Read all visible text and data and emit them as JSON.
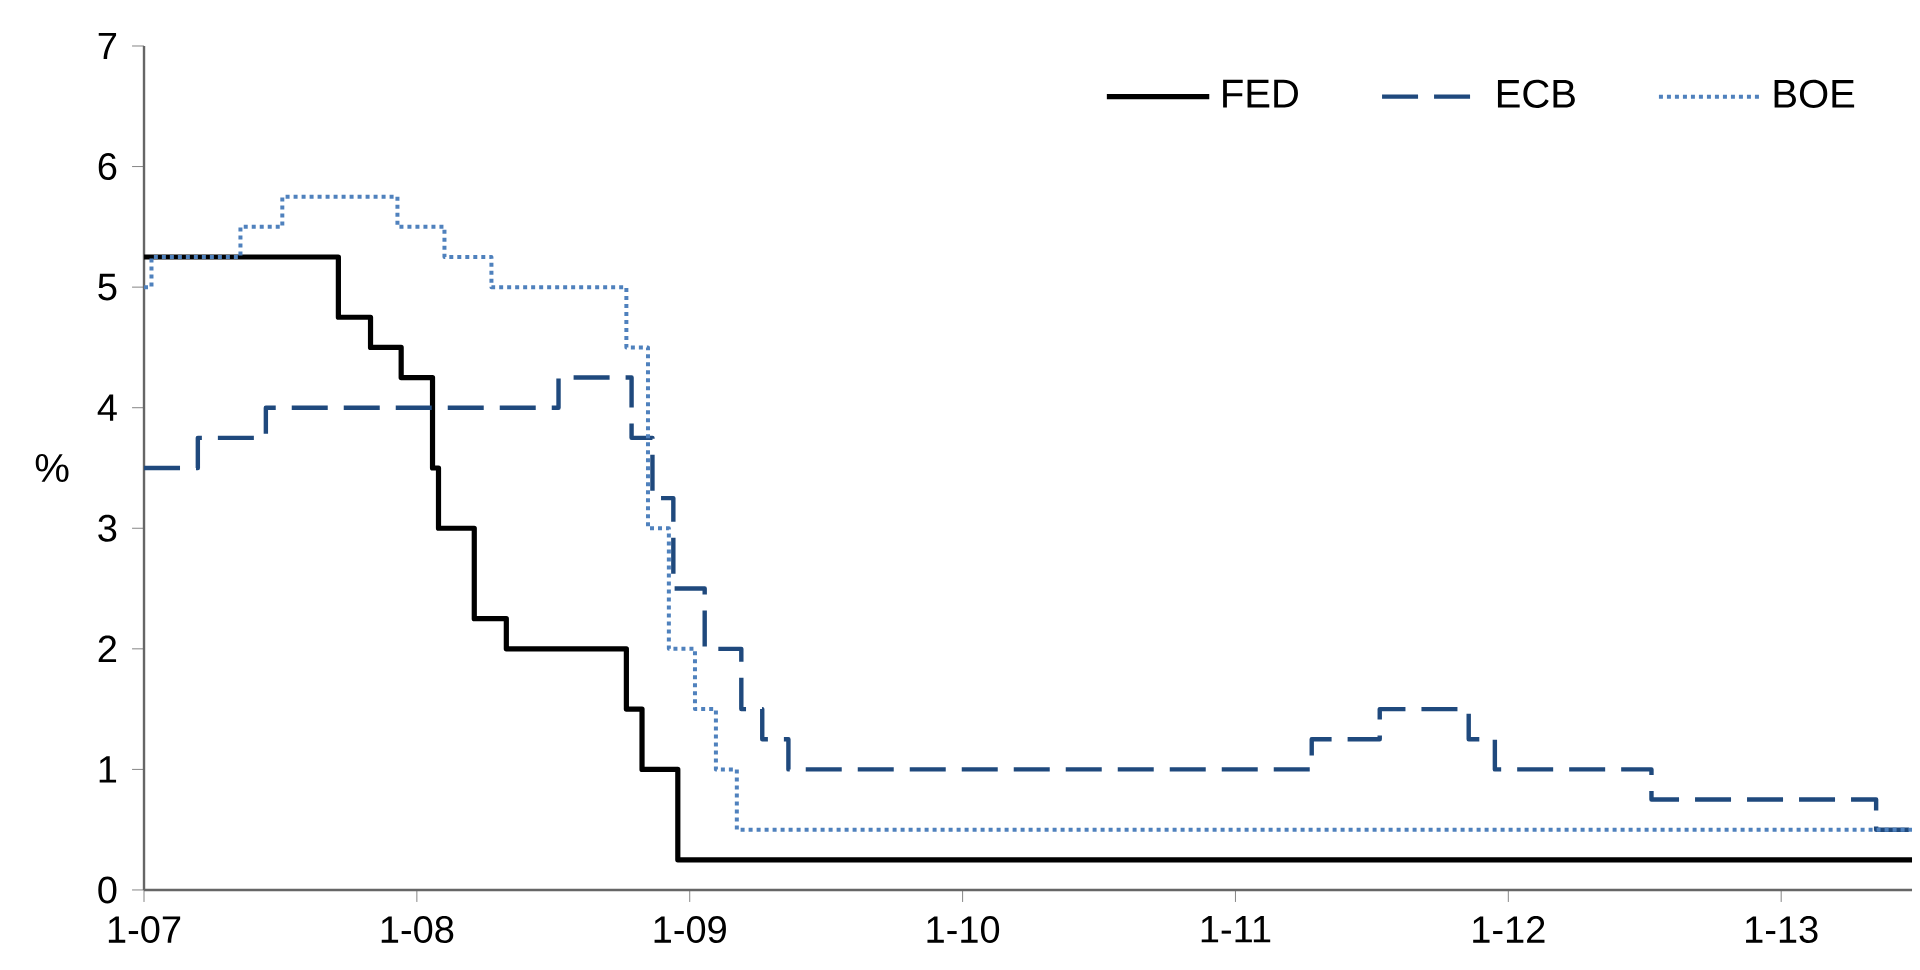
{
  "chart_data": {
    "type": "step",
    "ylabel": "%",
    "xlim": [
      "2007-01",
      "2013-06-25"
    ],
    "ylim": [
      0,
      7
    ],
    "xticks": [
      {
        "value": "2007-01",
        "label": "1-07"
      },
      {
        "value": "2008-01",
        "label": "1-08"
      },
      {
        "value": "2009-01",
        "label": "1-09"
      },
      {
        "value": "2010-01",
        "label": "1-10"
      },
      {
        "value": "2011-01",
        "label": "1-11"
      },
      {
        "value": "2012-01",
        "label": "1-12"
      },
      {
        "value": "2013-01",
        "label": "1-13"
      }
    ],
    "yticks": [
      0,
      1,
      2,
      3,
      4,
      5,
      6,
      7
    ],
    "grid": false,
    "legend": "top right",
    "series": [
      {
        "name": "FED",
        "color": "#000000",
        "line_style": "solid",
        "x": [
          "2007-01",
          "2007-09-18",
          "2007-10-31",
          "2007-12-11",
          "2008-01-22",
          "2008-01-30",
          "2008-03-18",
          "2008-04-30",
          "2008-10-08",
          "2008-10-29",
          "2008-12-16",
          "2013-06-25"
        ],
        "values": [
          5.25,
          4.75,
          4.5,
          4.25,
          3.5,
          3.0,
          2.25,
          2.0,
          1.5,
          1.0,
          0.25,
          0.25
        ]
      },
      {
        "name": "ECB",
        "color": "#1f497d",
        "line_style": "dashed",
        "x": [
          "2007-01",
          "2007-03-14",
          "2007-06-13",
          "2008-07-09",
          "2008-10-15",
          "2008-11-12",
          "2008-12-10",
          "2009-01-21",
          "2009-03-11",
          "2009-04-08",
          "2009-05-13",
          "2011-04-13",
          "2011-07-13",
          "2011-11-09",
          "2011-12-14",
          "2012-07-11",
          "2013-05-08",
          "2013-06-25"
        ],
        "values": [
          3.5,
          3.75,
          4.0,
          4.25,
          3.75,
          3.25,
          2.5,
          2.0,
          1.5,
          1.25,
          1.0,
          1.25,
          1.5,
          1.25,
          1.0,
          0.75,
          0.5,
          0.5
        ]
      },
      {
        "name": "BOE",
        "color": "#4f81bd",
        "line_style": "dotted",
        "x": [
          "2007-01",
          "2007-01-11",
          "2007-05-10",
          "2007-07-05",
          "2007-12-06",
          "2008-02-07",
          "2008-04-10",
          "2008-10-08",
          "2008-11-06",
          "2008-12-04",
          "2009-01-08",
          "2009-02-05",
          "2009-03-05",
          "2013-06-25"
        ],
        "values": [
          5.0,
          5.25,
          5.5,
          5.75,
          5.5,
          5.25,
          5.0,
          4.5,
          3.0,
          2.0,
          1.5,
          1.0,
          0.5,
          0.5
        ]
      }
    ]
  }
}
